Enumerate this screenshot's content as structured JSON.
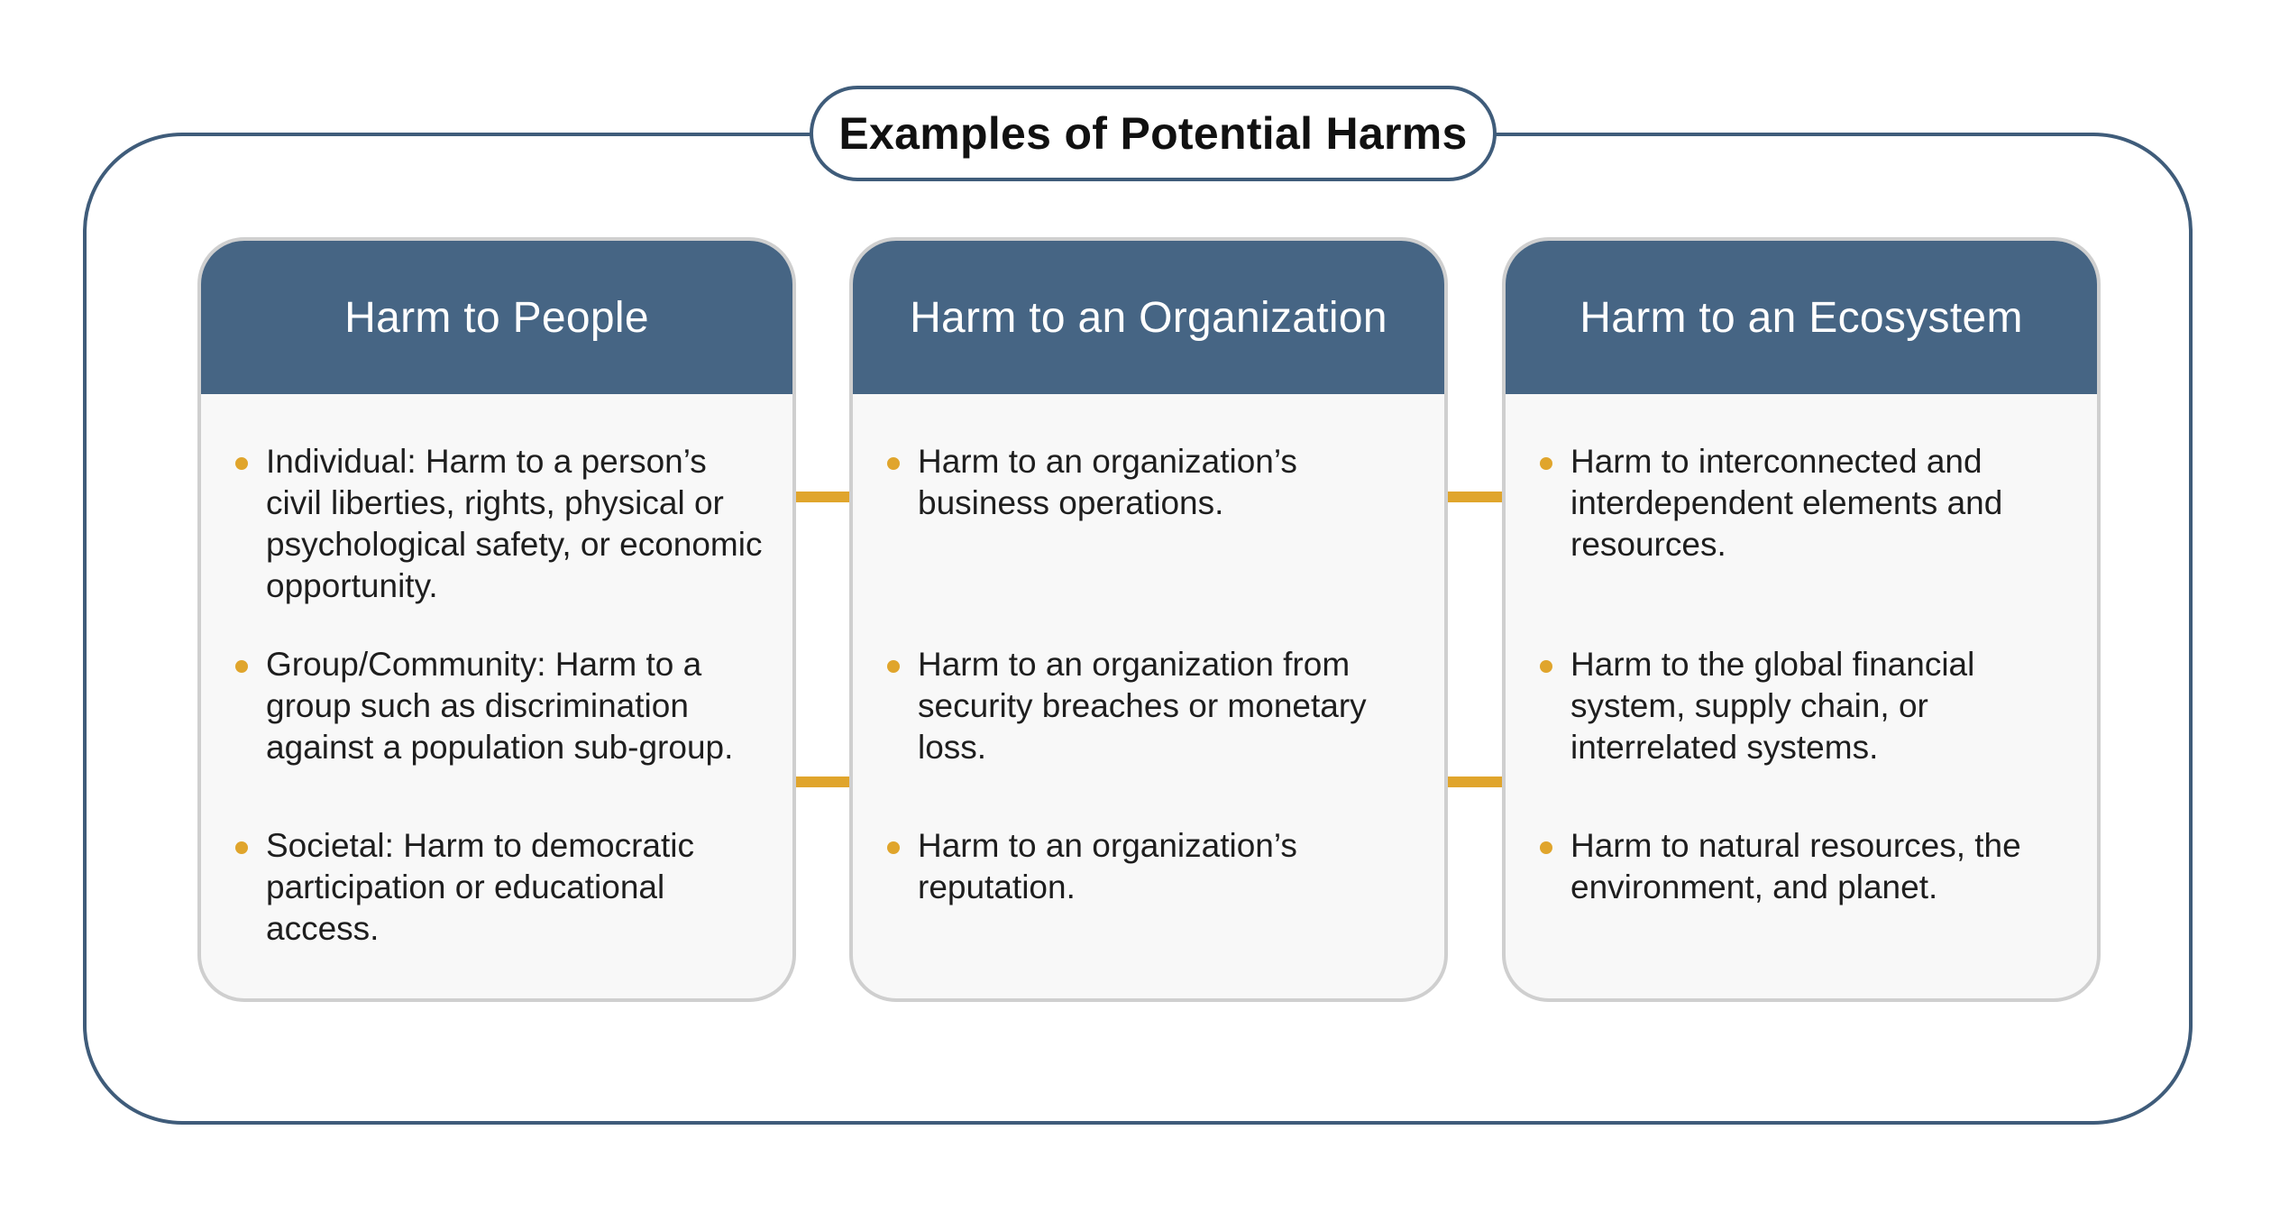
{
  "diagram": {
    "title": "Examples of Potential Harms",
    "accent_color": "#e0a52c",
    "header_color": "#466584",
    "frame_color": "#3f5c7a",
    "cards": [
      {
        "title": "Harm to People",
        "items": [
          "Individual: Harm to a person’s\ncivil liberties, rights, physical or\npsychological safety, or economic\nopportunity.",
          "Group/Community: Harm to a\ngroup such as discrimination\nagainst a population sub-group.",
          "Societal: Harm to democratic\nparticipation or educational\naccess."
        ]
      },
      {
        "title": "Harm to an Organization",
        "items": [
          "Harm to an organization’s\nbusiness operations.",
          "Harm to an organization from\nsecurity breaches or monetary\nloss.",
          "Harm to an organization’s\nreputation."
        ]
      },
      {
        "title": "Harm to an Ecosystem",
        "items": [
          "Harm to interconnected and\ninterdependent elements and\nresources.",
          "Harm to the global financial\nsystem, supply chain, or\ninterrelated systems.",
          "Harm to natural resources, the\nenvironment, and planet."
        ]
      }
    ]
  }
}
